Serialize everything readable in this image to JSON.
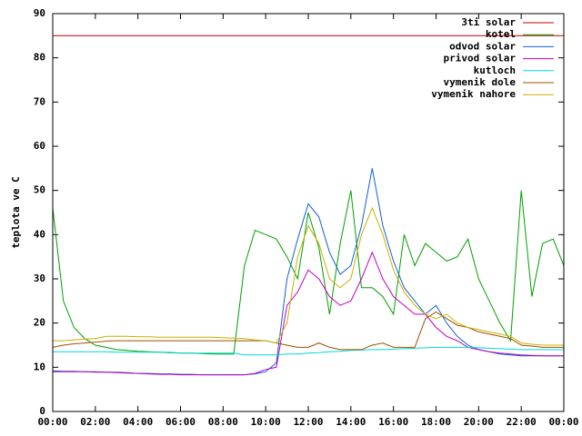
{
  "chart_data": {
    "type": "line",
    "ylabel": "teplota ve C",
    "x": [
      0,
      0.5,
      1,
      1.5,
      2,
      2.5,
      3,
      3.5,
      4,
      4.5,
      5,
      5.5,
      6,
      6.5,
      7,
      7.5,
      8,
      8.5,
      9,
      9.5,
      10,
      10.5,
      11,
      11.5,
      12,
      12.5,
      13,
      13.5,
      14,
      14.5,
      15,
      15.5,
      16,
      16.5,
      17,
      17.5,
      18,
      18.5,
      19,
      19.5,
      20,
      20.5,
      21,
      21.5,
      22,
      22.5,
      23,
      23.5,
      24
    ],
    "xlim": [
      0,
      24
    ],
    "xticks": [
      {
        "value": 0,
        "label": "00:00"
      },
      {
        "value": 2,
        "label": "02:00"
      },
      {
        "value": 4,
        "label": "04:00"
      },
      {
        "value": 6,
        "label": "06:00"
      },
      {
        "value": 8,
        "label": "08:00"
      },
      {
        "value": 10,
        "label": "10:00"
      },
      {
        "value": 12,
        "label": "12:00"
      },
      {
        "value": 14,
        "label": "14:00"
      },
      {
        "value": 16,
        "label": "16:00"
      },
      {
        "value": 18,
        "label": "18:00"
      },
      {
        "value": 20,
        "label": "20:00"
      },
      {
        "value": 22,
        "label": "22:00"
      },
      {
        "value": 24,
        "label": "00:00"
      }
    ],
    "ylim": [
      0,
      90
    ],
    "yticks": [
      0,
      10,
      20,
      30,
      40,
      50,
      60,
      70,
      80,
      90
    ],
    "legend": "top-right",
    "series": [
      {
        "name": "3ti solar",
        "color": "#c00000",
        "values": [
          85,
          85,
          85,
          85,
          85,
          85,
          85,
          85,
          85,
          85,
          85,
          85,
          85,
          85,
          85,
          85,
          85,
          85,
          85,
          85,
          85,
          85,
          85,
          85,
          85,
          85,
          85,
          85,
          85,
          85,
          85,
          85,
          85,
          85,
          85,
          85,
          85,
          85,
          85,
          85,
          85,
          85,
          85,
          85,
          85,
          85,
          85,
          85,
          85
        ]
      },
      {
        "name": "kotel",
        "color": "#00a000",
        "values": [
          46,
          25,
          19,
          16.5,
          15,
          14.5,
          14,
          13.8,
          13.6,
          13.5,
          13.4,
          13.3,
          13.2,
          13.2,
          13.1,
          13,
          13,
          13,
          33,
          41,
          40,
          39,
          35,
          30,
          45,
          37,
          22,
          38,
          50,
          28,
          28,
          26,
          22,
          40,
          33,
          38,
          36,
          34,
          35,
          39,
          30,
          25,
          20,
          16,
          50,
          26,
          38,
          39,
          33
        ]
      },
      {
        "name": "odvod solar",
        "color": "#1060d0",
        "values": [
          9.2,
          9.1,
          9.1,
          9,
          9,
          8.9,
          8.9,
          8.8,
          8.6,
          8.6,
          8.5,
          8.5,
          8.4,
          8.4,
          8.3,
          8.3,
          8.3,
          8.3,
          8.3,
          8.5,
          9,
          11,
          30,
          39,
          47,
          44,
          36,
          31,
          33,
          42,
          55,
          42,
          34,
          28,
          25,
          22,
          24,
          20,
          17,
          15,
          14,
          13.5,
          13,
          12.8,
          12.6,
          12.6,
          12.6,
          12.6,
          12.6
        ]
      },
      {
        "name": "privod solar",
        "color": "#c000c0",
        "values": [
          9,
          9,
          9,
          9,
          8.9,
          8.9,
          8.8,
          8.7,
          8.6,
          8.5,
          8.4,
          8.4,
          8.3,
          8.3,
          8.3,
          8.3,
          8.3,
          8.3,
          8.3,
          8.6,
          9.5,
          10,
          24,
          27,
          32,
          30,
          26,
          24,
          25,
          30,
          36,
          30,
          26,
          24,
          22,
          22,
          19,
          17,
          16,
          14.5,
          14,
          13.5,
          13.2,
          13,
          12.8,
          12.7,
          12.6,
          12.6,
          12.6
        ]
      },
      {
        "name": "kutloch",
        "color": "#00d8d8",
        "values": [
          13.5,
          13.5,
          13.5,
          13.5,
          13.5,
          13.5,
          13.4,
          13.4,
          13.4,
          13.4,
          13.4,
          13.4,
          13.2,
          13.2,
          13.2,
          13.2,
          13.2,
          13.2,
          12.8,
          12.8,
          12.8,
          12.8,
          13,
          13,
          13.2,
          13.3,
          13.5,
          13.6,
          13.8,
          13.9,
          14,
          14,
          14.1,
          14.2,
          14.3,
          14.4,
          14.5,
          14.5,
          14.5,
          14.5,
          14.4,
          14.3,
          14.2,
          14.1,
          14,
          14,
          14,
          14,
          14
        ]
      },
      {
        "name": "vymenik dole",
        "color": "#a05000",
        "values": [
          14.5,
          15,
          15.3,
          15.5,
          15.7,
          15.9,
          16,
          16,
          16,
          16,
          16,
          16,
          16,
          16,
          16,
          16,
          16,
          16,
          16,
          16,
          16,
          15.5,
          15,
          14.5,
          14.5,
          15.5,
          14.5,
          14,
          14,
          14,
          15,
          15.5,
          14.5,
          14.5,
          14.5,
          21,
          22.5,
          21,
          19.5,
          19,
          18,
          17.5,
          17,
          16.5,
          15,
          14.8,
          14.5,
          14.5,
          14.5
        ]
      },
      {
        "name": "vymenik nahore",
        "color": "#c8b000",
        "values": [
          16,
          16,
          16.2,
          16.4,
          16.5,
          17,
          17,
          17,
          16.9,
          16.9,
          16.8,
          16.8,
          16.8,
          16.8,
          16.8,
          16.8,
          16.7,
          16.6,
          16.5,
          16.2,
          16,
          15.5,
          20,
          35,
          42,
          38,
          30,
          28,
          30,
          40,
          46,
          40,
          32,
          27,
          24,
          22,
          21,
          22,
          20,
          19,
          18.5,
          18,
          17.5,
          17,
          15.5,
          15.2,
          15,
          15,
          15
        ]
      }
    ]
  }
}
